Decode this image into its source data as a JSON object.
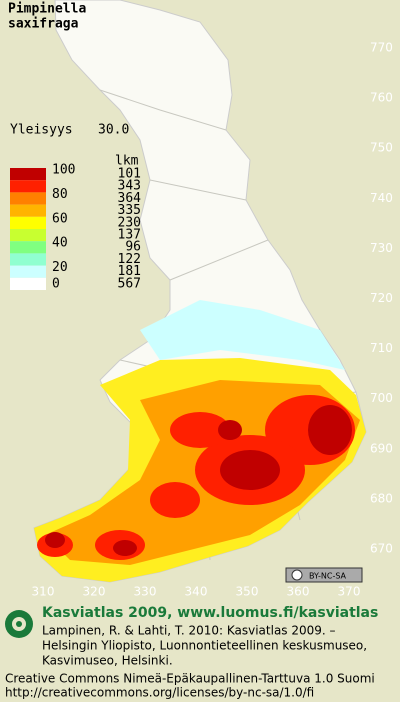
{
  "title": [
    "Pimpinella",
    "saxifraga"
  ],
  "frequency": {
    "label": "Yleisyys",
    "value": "30.0"
  },
  "legend": {
    "percent_labels": [
      100,
      80,
      60,
      40,
      20,
      0
    ],
    "count_header": "lkm",
    "counts": [
      101,
      343,
      364,
      335,
      230,
      137,
      96,
      122,
      181,
      567
    ],
    "colors": [
      "#c00000",
      "#ff2000",
      "#ff8000",
      "#ffb400",
      "#ffff00",
      "#c8ff30",
      "#80ff80",
      "#90ffd0",
      "#ccffff",
      "#ffffff"
    ]
  },
  "grid": {
    "y_labels": [
      770,
      760,
      750,
      740,
      730,
      720,
      710,
      700,
      690,
      680,
      670
    ],
    "x_labels": [
      310,
      320,
      330,
      340,
      350,
      360,
      370
    ]
  },
  "license_badge": "BY-NC-SA",
  "footer": {
    "heading": "Kasviatlas 2009, www.luomus.fi/kasviatlas",
    "citation": [
      "Lampinen, R. & Lahti, T. 2010: Kasviatlas 2009. –",
      "Helsingin Yliopisto, Luonnontieteellinen keskusmuseo,",
      "Kasvimuseo, Helsinki."
    ],
    "license": [
      "Creative Commons Nimeä-Epäkaupallinen-Tarttuva 1.0 Suomi",
      "http://creativecommons.org/licenses/by-nc-sa/1.0/fi"
    ]
  }
}
